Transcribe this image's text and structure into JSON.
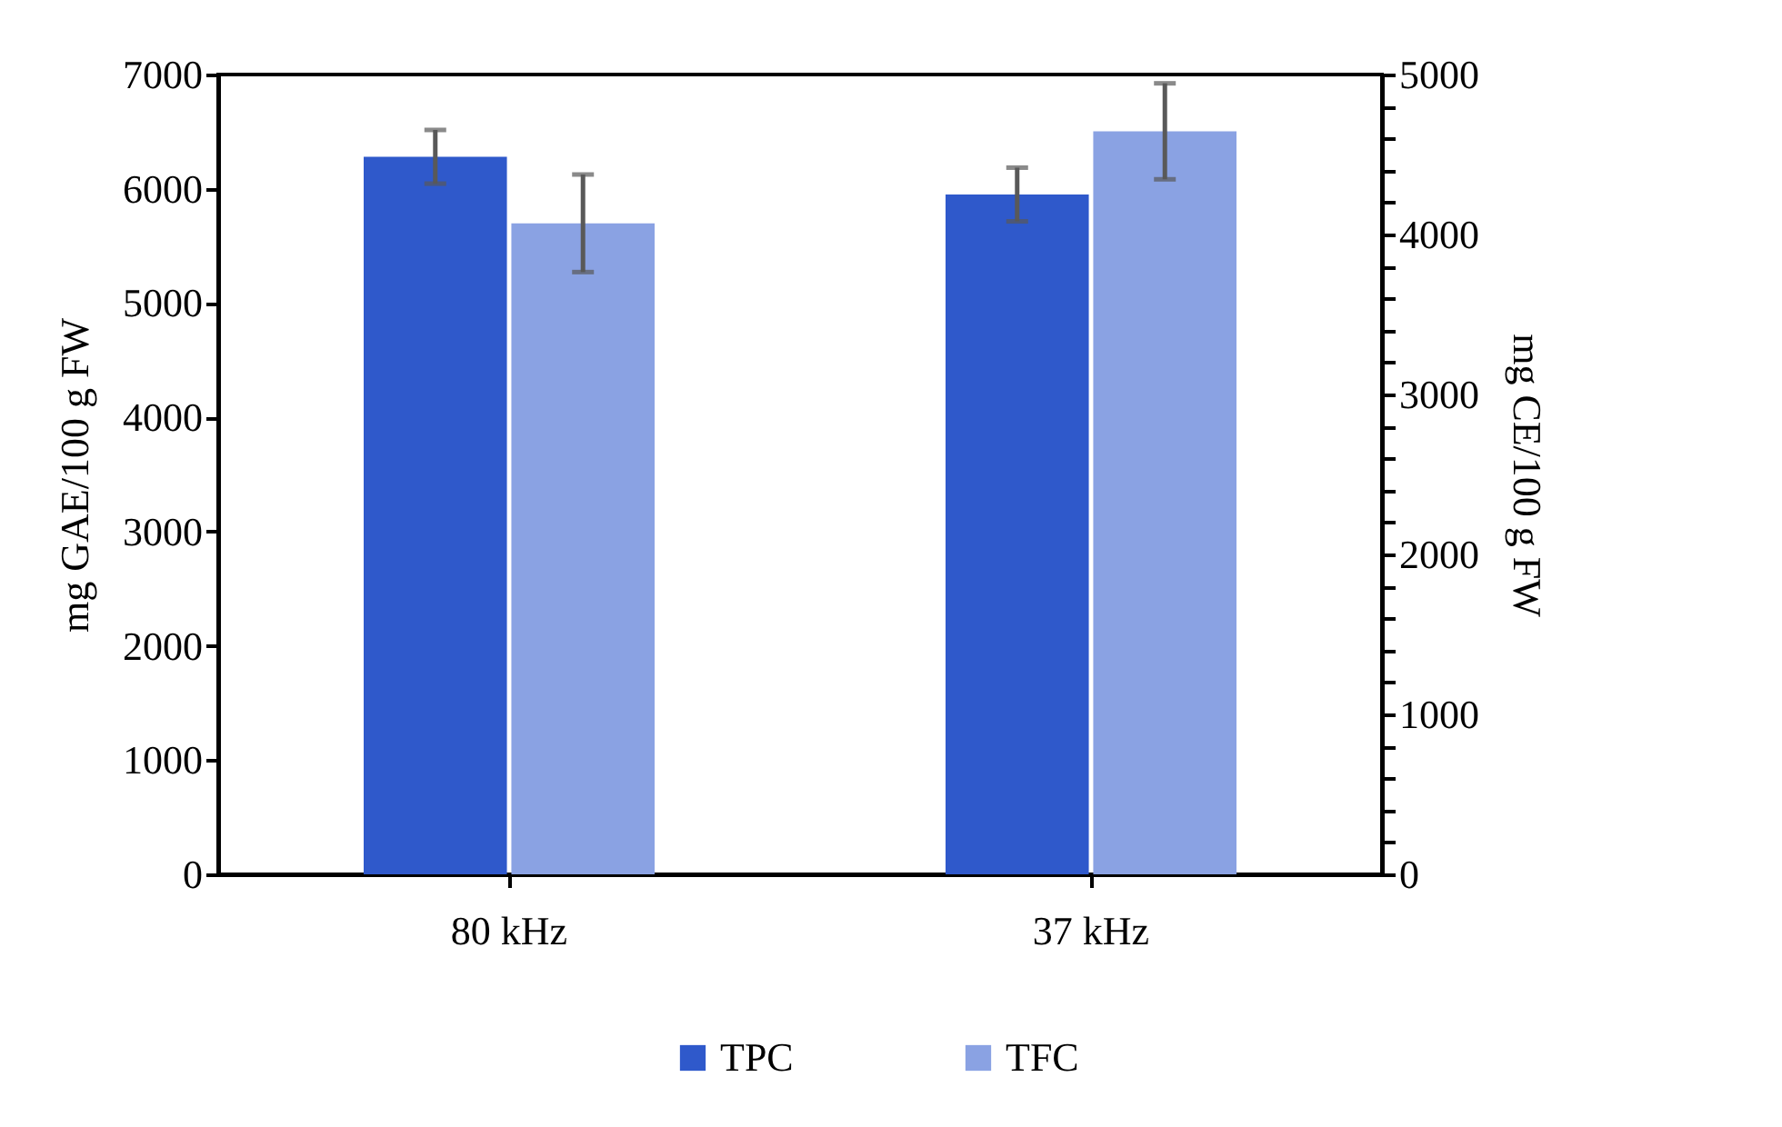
{
  "chart_data": {
    "type": "bar",
    "categories": [
      "80 kHz",
      "37 kHz"
    ],
    "series": [
      {
        "name": "TPC",
        "color": "#2f59cb",
        "values": [
          6280,
          5950
        ],
        "errors": [
          235,
          235
        ]
      },
      {
        "name": "TFC",
        "color": "#8aa2e3",
        "values": [
          4070,
          4645
        ],
        "errors": [
          305,
          300
        ],
        "axis": "y2"
      }
    ],
    "ylabel": "mg GAE/100 g FW",
    "y2label": "mg CE/100 g FW",
    "ylim": [
      0,
      7000
    ],
    "yticks": [
      0,
      1000,
      2000,
      3000,
      4000,
      5000,
      6000,
      7000
    ],
    "y2lim": [
      0,
      5000
    ],
    "y2ticks": [
      0,
      {
        "value": 200,
        "label": null
      },
      {
        "value": 400,
        "label": null
      },
      {
        "value": 600,
        "label": null
      },
      {
        "value": 800,
        "label": null
      },
      1000,
      {
        "value": 1200,
        "label": null
      },
      {
        "value": 1400,
        "label": null
      },
      {
        "value": 1600,
        "label": null
      },
      {
        "value": 1800,
        "label": null
      },
      2000,
      {
        "value": 2200,
        "label": null
      },
      {
        "value": 2400,
        "label": null
      },
      {
        "value": 2600,
        "label": null
      },
      {
        "value": 2800,
        "label": null
      },
      3000,
      {
        "value": 3200,
        "label": null
      },
      {
        "value": 3400,
        "label": null
      },
      {
        "value": 3600,
        "label": null
      },
      {
        "value": 3800,
        "label": null
      },
      4000,
      {
        "value": 4200,
        "label": null
      },
      {
        "value": 4400,
        "label": null
      },
      {
        "value": 4600,
        "label": null
      },
      {
        "value": 4800,
        "label": null
      },
      5000
    ],
    "legend": "bottom"
  }
}
